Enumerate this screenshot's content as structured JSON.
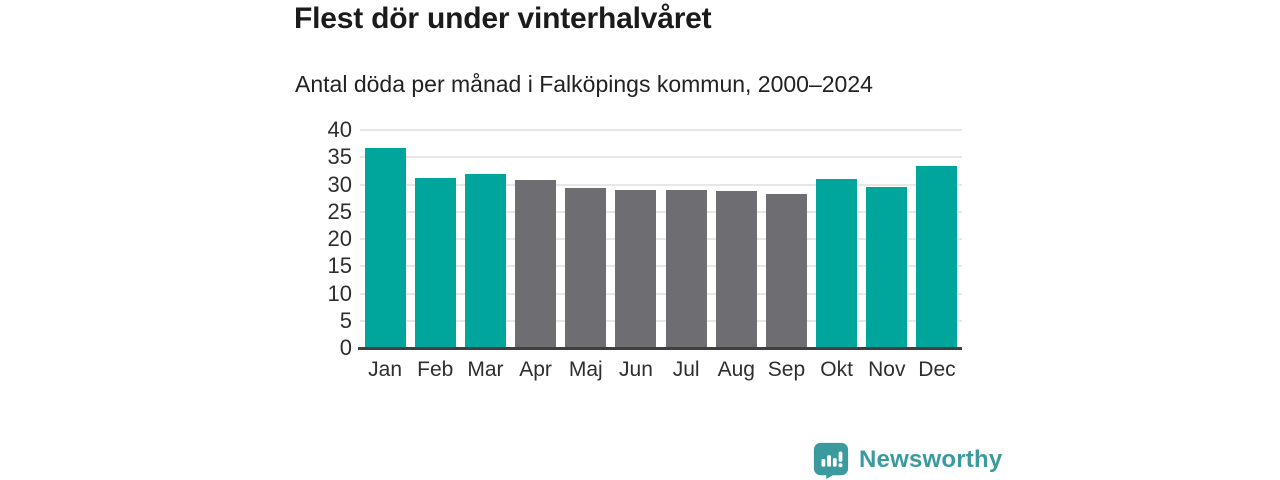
{
  "header": {
    "title": "Flest dör under vinterhalvåret",
    "subtitle": "Antal döda per månad i Falköpings kommun, 2000–2024"
  },
  "chart_data": {
    "type": "bar",
    "title": "Flest dör under vinterhalvåret",
    "subtitle": "Antal döda per månad i Falköpings kommun, 2000–2024",
    "categories": [
      "Jan",
      "Feb",
      "Mar",
      "Apr",
      "Maj",
      "Jun",
      "Jul",
      "Aug",
      "Sep",
      "Okt",
      "Nov",
      "Dec"
    ],
    "values": [
      36.7,
      31.2,
      32.0,
      30.9,
      29.4,
      29.0,
      29.0,
      28.8,
      28.3,
      31.0,
      29.5,
      33.4
    ],
    "value_colors": [
      "#00a69c",
      "#00a69c",
      "#00a69c",
      "#6d6d72",
      "#6d6d72",
      "#6d6d72",
      "#6d6d72",
      "#6d6d72",
      "#6d6d72",
      "#00a69c",
      "#00a69c",
      "#00a69c"
    ],
    "highlight_color": "#00a69c",
    "muted_color": "#6d6d72",
    "highlighted_months": [
      "Jan",
      "Feb",
      "Mar",
      "Okt",
      "Nov",
      "Dec"
    ],
    "xlabel": "",
    "ylabel": "",
    "ylim": [
      0,
      40
    ],
    "yticks": [
      0,
      5,
      10,
      15,
      20,
      25,
      30,
      35,
      40
    ],
    "grid": "horizontal",
    "legend": "none"
  },
  "footer": {
    "brand": "Newsworthy",
    "logo_color": "#3b9a9d",
    "logo_icon": "speech-bubble-bar-chart-icon"
  }
}
